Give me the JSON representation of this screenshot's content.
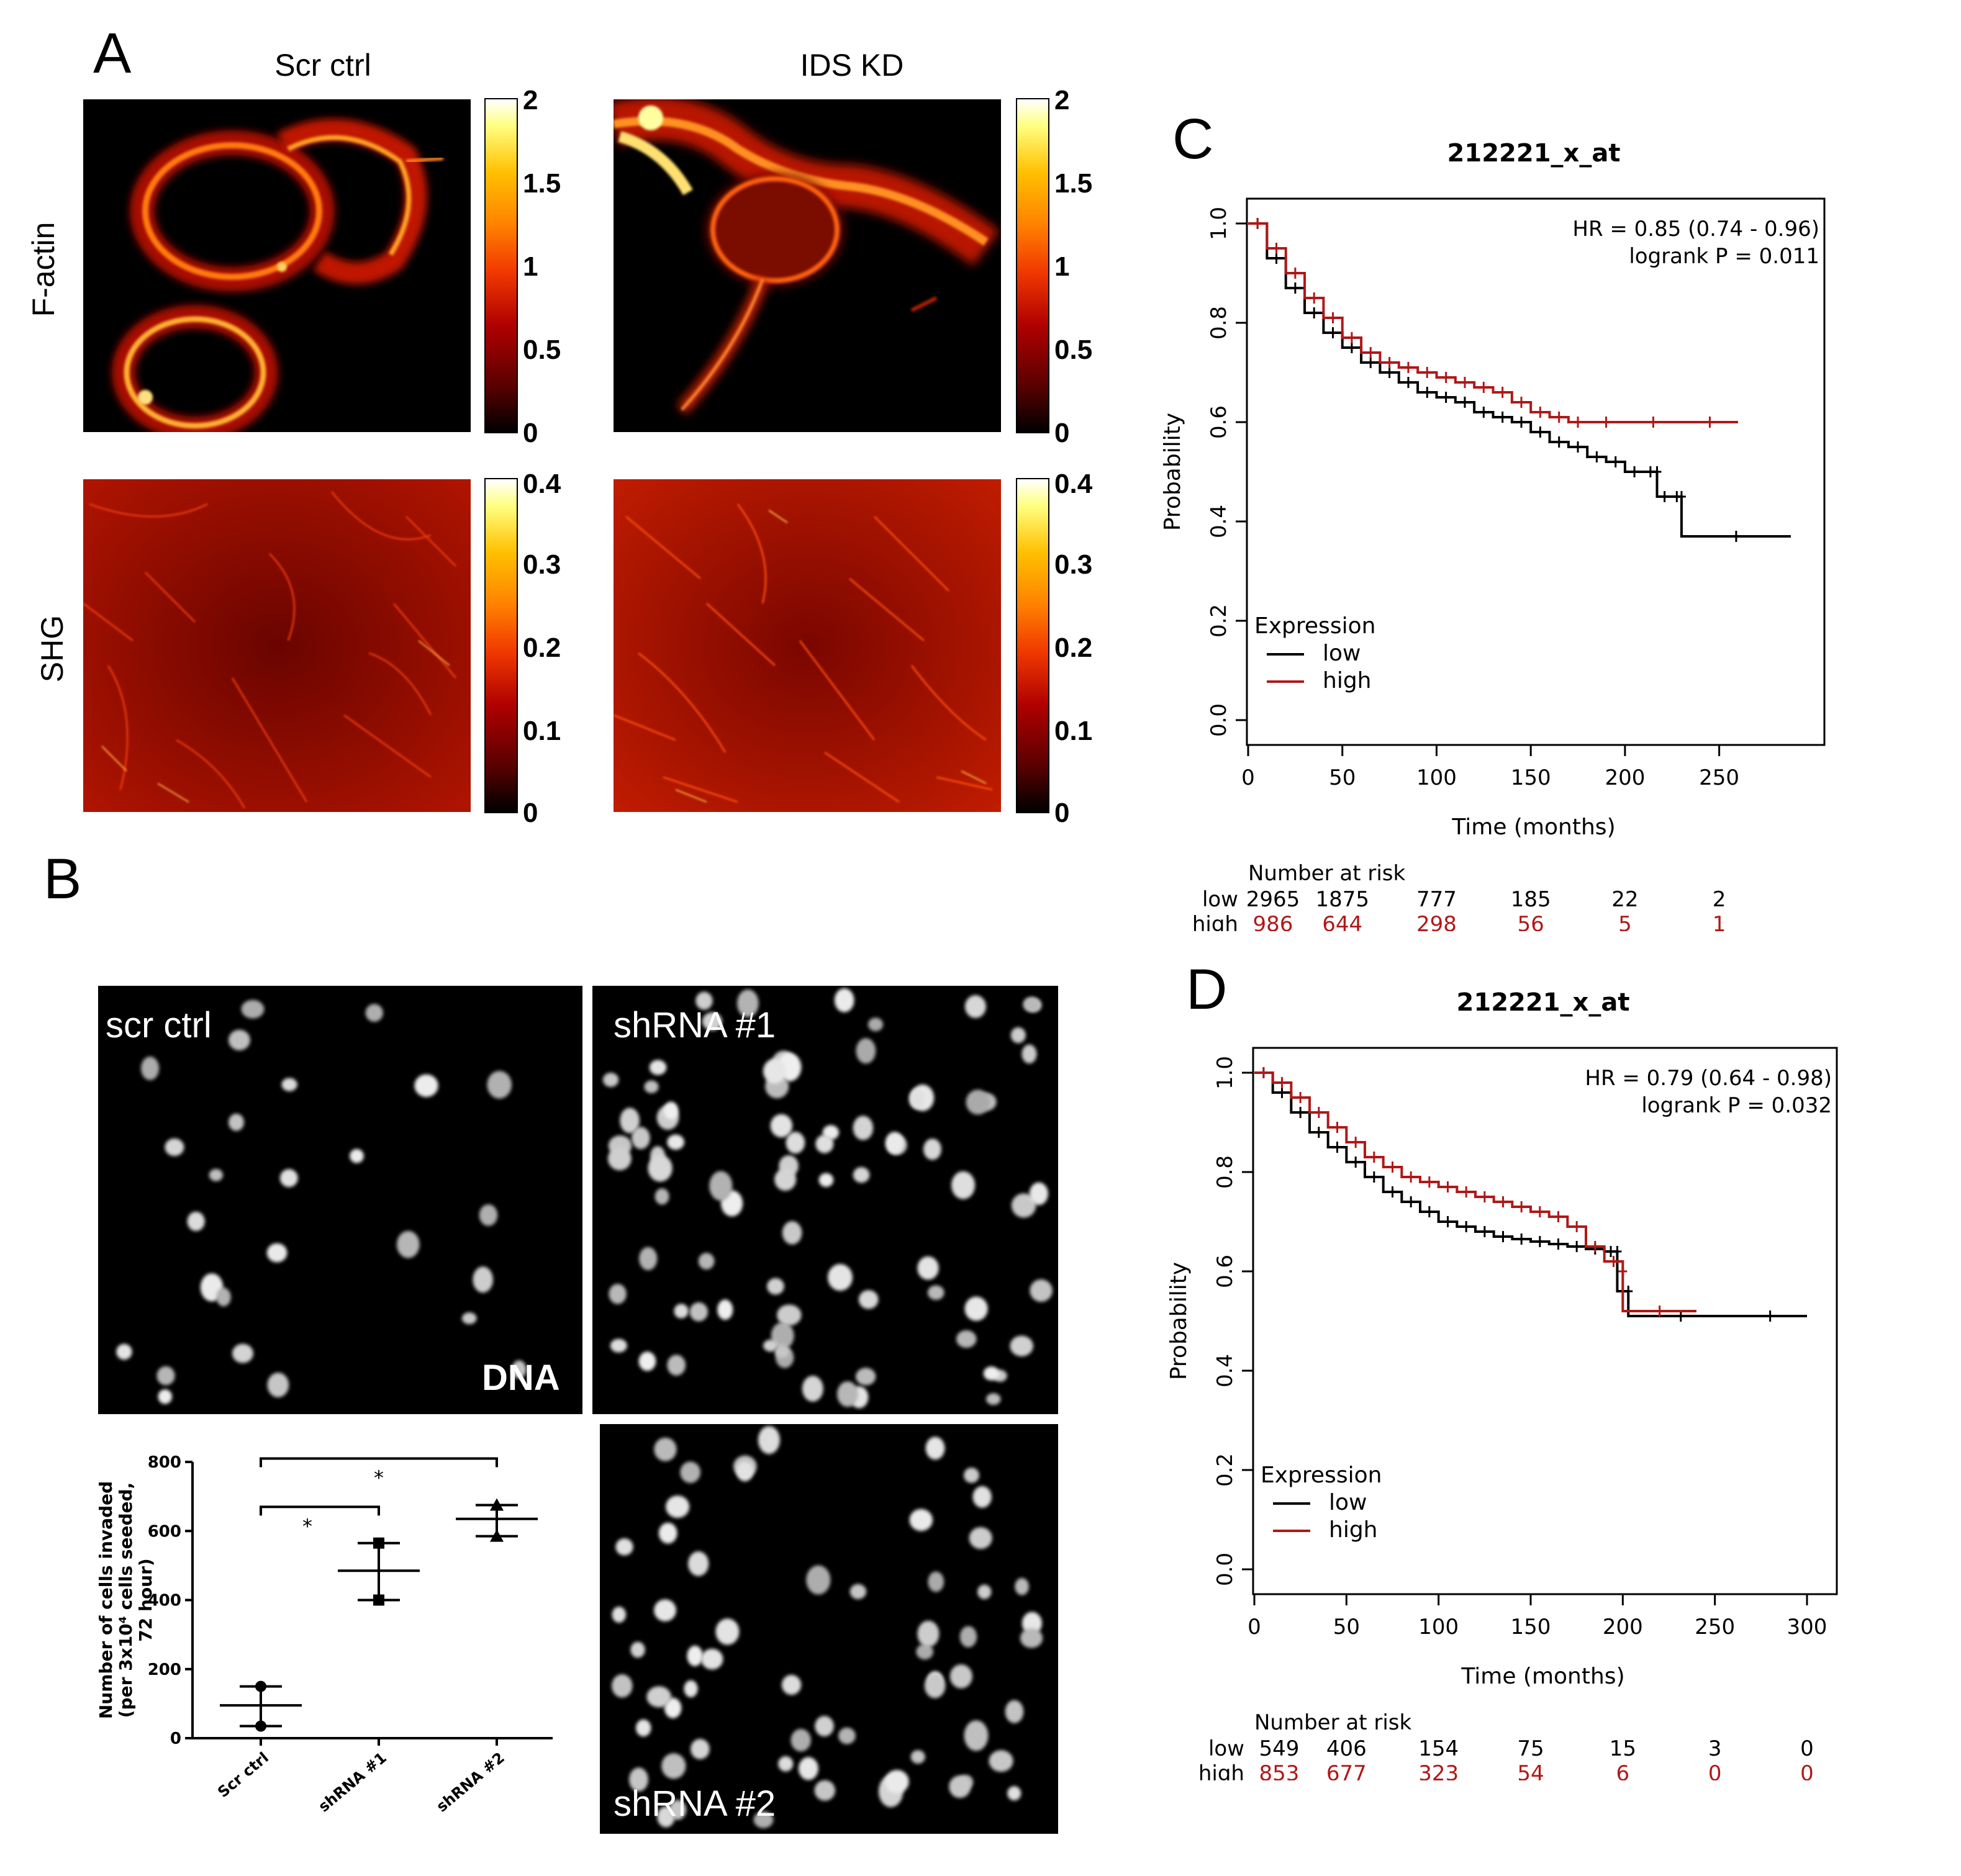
{
  "panel_A": {
    "letter": "A",
    "col_titles": [
      "Scr ctrl",
      "IDS KD"
    ],
    "row_labels": [
      "F-actin",
      "SHG"
    ],
    "factin_colorbar_ticks": [
      "2",
      "1.5",
      "1",
      "0.5",
      "0"
    ],
    "shg_colorbar_ticks": [
      "0.4",
      "0.3",
      "0.2",
      "0.1",
      "0"
    ]
  },
  "panel_B": {
    "letter": "B",
    "images": {
      "scr": "scr ctrl",
      "dna": "DNA",
      "sh1": "shRNA #1",
      "sh2": "shRNA #2"
    },
    "chart_data": {
      "type": "scatter",
      "categories": [
        "Scr ctrl",
        "shRNA #1",
        "shRNA #2"
      ],
      "ylabel_lines": [
        "Number of cells invaded",
        "(per 3x10⁴ cells seeded,",
        "72 hour)"
      ],
      "ylim": [
        0,
        800
      ],
      "yticks": [
        "0",
        "200",
        "400",
        "600",
        "800"
      ],
      "series": [
        {
          "points": [
            [
              1,
              150
            ],
            [
              1,
              35
            ]
          ],
          "mean": 95,
          "error": [
            35,
            150
          ]
        },
        {
          "points": [
            [
              2,
              565
            ],
            [
              2,
              400
            ]
          ],
          "mean": 485,
          "error": [
            400,
            565
          ]
        },
        {
          "points": [
            [
              3,
              675
            ],
            [
              3,
              585
            ]
          ],
          "mean": 635,
          "error": [
            585,
            675
          ]
        }
      ],
      "significance": [
        {
          "from": "Scr ctrl",
          "to": "shRNA #1",
          "label": "*"
        },
        {
          "from": "Scr ctrl",
          "to": "shRNA #2",
          "label": "*"
        }
      ]
    }
  },
  "panel_C": {
    "letter": "C",
    "chart_data": {
      "type": "line",
      "title": "212221_x_at",
      "xlabel": "Time (months)",
      "ylabel": "Probability",
      "xlim": [
        0,
        290
      ],
      "ylim": [
        0,
        1.0
      ],
      "xticks": [
        "0",
        "50",
        "100",
        "150",
        "200",
        "250"
      ],
      "yticks": [
        "0.0",
        "0.2",
        "0.4",
        "0.6",
        "0.8",
        "1.0"
      ],
      "annotation": [
        "HR = 0.85 (0.74 - 0.96)",
        "logrank P = 0.011"
      ],
      "legend_title": "Expression",
      "legend_placement": "bottom-left",
      "series": [
        {
          "name": "low",
          "color": "#000000",
          "x": [
            0,
            10,
            20,
            30,
            40,
            50,
            60,
            70,
            80,
            90,
            100,
            110,
            120,
            130,
            140,
            150,
            160,
            170,
            180,
            190,
            200,
            210,
            217,
            217,
            225,
            230,
            230,
            288
          ],
          "y": [
            1.0,
            0.93,
            0.87,
            0.82,
            0.78,
            0.75,
            0.72,
            0.7,
            0.68,
            0.66,
            0.65,
            0.64,
            0.62,
            0.61,
            0.6,
            0.58,
            0.56,
            0.55,
            0.53,
            0.52,
            0.5,
            0.5,
            0.5,
            0.45,
            0.45,
            0.45,
            0.37,
            0.37
          ]
        },
        {
          "name": "high",
          "color": "#b01818",
          "x": [
            0,
            10,
            20,
            30,
            40,
            50,
            60,
            70,
            80,
            90,
            100,
            110,
            120,
            130,
            140,
            150,
            160,
            170,
            180,
            200,
            230,
            260
          ],
          "y": [
            1.0,
            0.95,
            0.9,
            0.85,
            0.81,
            0.77,
            0.74,
            0.72,
            0.71,
            0.7,
            0.69,
            0.68,
            0.67,
            0.66,
            0.64,
            0.62,
            0.61,
            0.6,
            0.6,
            0.6,
            0.6,
            0.6
          ]
        }
      ],
      "risk_table": {
        "header": "Number at risk",
        "rows": [
          {
            "label": "low",
            "values": [
              "2965",
              "1875",
              "777",
              "185",
              "22",
              "2"
            ]
          },
          {
            "label": "high",
            "values": [
              "986",
              "644",
              "298",
              "56",
              "5",
              "1"
            ]
          }
        ],
        "times": [
          0,
          50,
          100,
          150,
          200,
          250
        ]
      }
    }
  },
  "panel_D": {
    "letter": "D",
    "chart_data": {
      "type": "line",
      "title": "212221_x_at",
      "xlabel": "Time (months)",
      "ylabel": "Probability",
      "xlim": [
        0,
        300
      ],
      "ylim": [
        0,
        1.0
      ],
      "xticks": [
        "0",
        "50",
        "100",
        "150",
        "200",
        "250",
        "300"
      ],
      "yticks": [
        "0.0",
        "0.2",
        "0.4",
        "0.6",
        "0.8",
        "1.0"
      ],
      "annotation": [
        "HR = 0.79 (0.64 - 0.98)",
        "logrank P = 0.032"
      ],
      "legend_title": "Expression",
      "legend_placement": "bottom-left",
      "series": [
        {
          "name": "low",
          "color": "#000000",
          "x": [
            0,
            10,
            20,
            30,
            40,
            50,
            60,
            70,
            80,
            90,
            100,
            110,
            120,
            130,
            140,
            150,
            160,
            170,
            180,
            190,
            197,
            197,
            203,
            203,
            260,
            300
          ],
          "y": [
            1.0,
            0.96,
            0.92,
            0.88,
            0.85,
            0.82,
            0.79,
            0.76,
            0.74,
            0.72,
            0.7,
            0.69,
            0.68,
            0.67,
            0.665,
            0.66,
            0.655,
            0.65,
            0.645,
            0.64,
            0.64,
            0.56,
            0.56,
            0.51,
            0.51,
            0.51
          ]
        },
        {
          "name": "high",
          "color": "#b01818",
          "x": [
            0,
            10,
            20,
            30,
            40,
            50,
            60,
            70,
            80,
            90,
            100,
            110,
            120,
            130,
            140,
            150,
            160,
            170,
            180,
            190,
            200,
            200,
            240
          ],
          "y": [
            1.0,
            0.98,
            0.95,
            0.92,
            0.89,
            0.86,
            0.83,
            0.81,
            0.79,
            0.78,
            0.77,
            0.76,
            0.75,
            0.74,
            0.73,
            0.72,
            0.71,
            0.69,
            0.65,
            0.62,
            0.6,
            0.52,
            0.52
          ]
        }
      ],
      "risk_table": {
        "header": "Number at risk",
        "rows": [
          {
            "label": "low",
            "values": [
              "549",
              "406",
              "154",
              "75",
              "15",
              "3",
              "0"
            ]
          },
          {
            "label": "high",
            "values": [
              "853",
              "677",
              "323",
              "54",
              "6",
              "0",
              "0"
            ]
          }
        ],
        "times": [
          0,
          50,
          100,
          150,
          200,
          250,
          300
        ]
      }
    }
  },
  "colors": {
    "low": "#000000",
    "high": "#b01818",
    "heat_dark": "#000000",
    "heat_mid": "#e02000",
    "heat_bright": "#ffff80"
  }
}
